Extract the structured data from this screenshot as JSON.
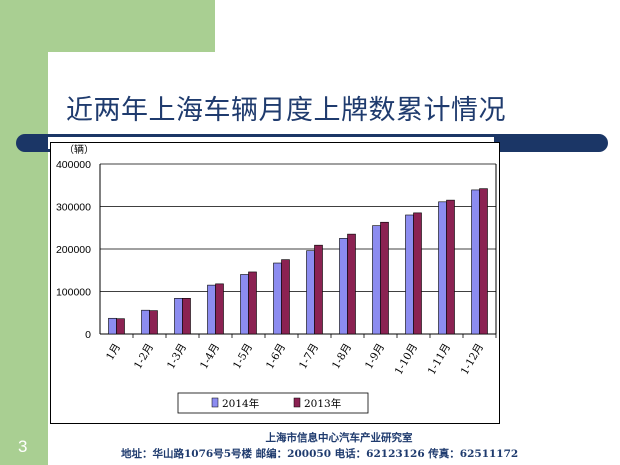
{
  "slide": {
    "title": "近两年上海车辆月度上牌数累计情况",
    "page_number": "3",
    "footer_org": "上海市信息中心汽车产业研究室",
    "footer_contact": "地址：华山路1076号5号楼  邮编：200050 电话：62123126 传真：62511172"
  },
  "colors": {
    "side_green": "#a9cf92",
    "title_navy": "#1f3b6e",
    "bar_2014": "#8c8cf0",
    "bar_2013": "#8b2252"
  },
  "chart_data": {
    "type": "bar",
    "title": "",
    "xlabel": "",
    "ylabel": "",
    "unit_label": "（辆）",
    "categories": [
      "1月",
      "1-2月",
      "1-3月",
      "1-4月",
      "1-5月",
      "1-6月",
      "1-7月",
      "1-8月",
      "1-9月",
      "1-10月",
      "1-11月",
      "1-12月"
    ],
    "series": [
      {
        "name": "2014年",
        "values": [
          37000,
          56000,
          84000,
          115000,
          140000,
          167000,
          196000,
          225000,
          255000,
          280000,
          311000,
          339000
        ]
      },
      {
        "name": "2013年",
        "values": [
          36000,
          55000,
          84000,
          118000,
          146000,
          175000,
          209000,
          235000,
          263000,
          285000,
          315000,
          342000
        ]
      }
    ],
    "yticks": [
      "0",
      "100000",
      "200000",
      "300000",
      "400000"
    ],
    "ylim": [
      0,
      400000
    ],
    "grid": true,
    "legend_position": "bottom"
  }
}
